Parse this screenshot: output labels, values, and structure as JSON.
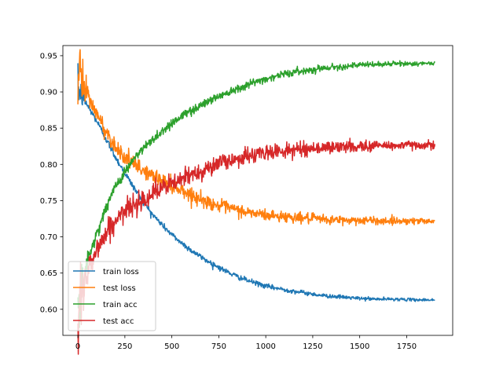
{
  "chart_data": {
    "type": "line",
    "title": "",
    "xlabel": "",
    "ylabel": "",
    "xlim": [
      -80,
      1995
    ],
    "ylim": [
      0.564,
      0.964
    ],
    "xticks": [
      0,
      250,
      500,
      750,
      1000,
      1250,
      1500,
      1750
    ],
    "xtick_labels": [
      "0",
      "250",
      "500",
      "750",
      "1000",
      "1250",
      "1500",
      "1750"
    ],
    "yticks": [
      0.6,
      0.65,
      0.7,
      0.75,
      0.8,
      0.85,
      0.9,
      0.95
    ],
    "ytick_labels": [
      "0.60",
      "0.65",
      "0.70",
      "0.75",
      "0.80",
      "0.85",
      "0.90",
      "0.95"
    ],
    "grid": false,
    "legend": "lower-left",
    "noise_note_hidden": true,
    "series": [
      {
        "name": "train loss",
        "color": "#1f77b4",
        "x": [
          0,
          50,
          100,
          150,
          200,
          250,
          300,
          350,
          400,
          450,
          500,
          550,
          600,
          650,
          700,
          750,
          800,
          850,
          900,
          950,
          1000,
          1100,
          1200,
          1300,
          1400,
          1500,
          1600,
          1700,
          1800,
          1900
        ],
        "y": [
          0.905,
          0.882,
          0.86,
          0.835,
          0.81,
          0.788,
          0.767,
          0.748,
          0.73,
          0.716,
          0.703,
          0.692,
          0.682,
          0.673,
          0.665,
          0.658,
          0.651,
          0.645,
          0.64,
          0.636,
          0.632,
          0.627,
          0.623,
          0.619,
          0.617,
          0.615,
          0.614,
          0.614,
          0.613,
          0.613
        ],
        "noise": 0.0025
      },
      {
        "name": "test loss",
        "color": "#ff7f0e",
        "x": [
          0,
          10,
          20,
          50,
          100,
          150,
          200,
          250,
          300,
          350,
          400,
          450,
          500,
          550,
          600,
          650,
          700,
          750,
          800,
          850,
          900,
          950,
          1000,
          1100,
          1200,
          1300,
          1400,
          1500,
          1600,
          1700,
          1800,
          1900
        ],
        "y": [
          0.91,
          0.935,
          0.915,
          0.895,
          0.87,
          0.845,
          0.825,
          0.81,
          0.8,
          0.791,
          0.784,
          0.778,
          0.771,
          0.765,
          0.758,
          0.752,
          0.747,
          0.743,
          0.74,
          0.737,
          0.734,
          0.732,
          0.73,
          0.728,
          0.726,
          0.724,
          0.723,
          0.723,
          0.722,
          0.722,
          0.722,
          0.722
        ],
        "noise": 0.006
      },
      {
        "name": "train acc",
        "color": "#2ca02c",
        "x": [
          0,
          20,
          50,
          100,
          150,
          200,
          250,
          300,
          350,
          400,
          450,
          500,
          550,
          600,
          650,
          700,
          750,
          800,
          850,
          900,
          950,
          1000,
          1100,
          1200,
          1300,
          1400,
          1500,
          1600,
          1700,
          1800,
          1900
        ],
        "y": [
          0.59,
          0.63,
          0.665,
          0.705,
          0.74,
          0.77,
          0.79,
          0.808,
          0.822,
          0.835,
          0.846,
          0.857,
          0.866,
          0.874,
          0.881,
          0.888,
          0.894,
          0.9,
          0.905,
          0.91,
          0.914,
          0.918,
          0.925,
          0.929,
          0.933,
          0.935,
          0.937,
          0.938,
          0.939,
          0.939,
          0.939
        ],
        "noise": 0.004
      },
      {
        "name": "test acc",
        "color": "#d62728",
        "x": [
          0,
          20,
          50,
          100,
          150,
          200,
          250,
          300,
          350,
          400,
          450,
          500,
          550,
          600,
          650,
          700,
          750,
          800,
          850,
          900,
          950,
          1000,
          1100,
          1200,
          1300,
          1400,
          1500,
          1600,
          1700,
          1800,
          1900
        ],
        "y": [
          0.6,
          0.625,
          0.655,
          0.682,
          0.705,
          0.722,
          0.735,
          0.745,
          0.753,
          0.76,
          0.767,
          0.773,
          0.779,
          0.785,
          0.791,
          0.796,
          0.801,
          0.805,
          0.808,
          0.811,
          0.814,
          0.816,
          0.819,
          0.821,
          0.823,
          0.824,
          0.825,
          0.826,
          0.826,
          0.827,
          0.827
        ],
        "noise": 0.008
      }
    ]
  }
}
